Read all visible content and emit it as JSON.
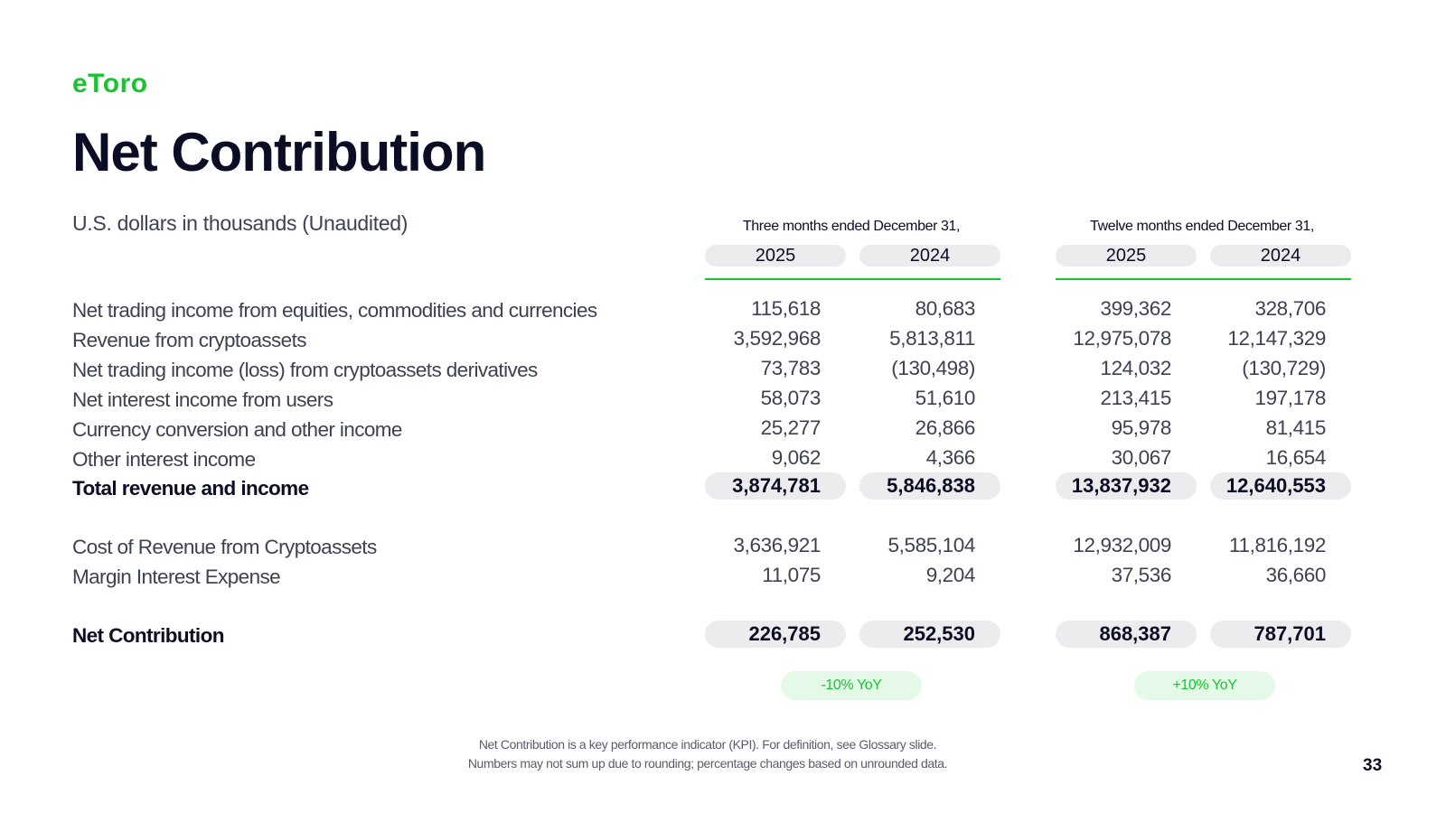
{
  "brand": {
    "name": "eToro",
    "logo_text": "eToro",
    "color": "#1ac431"
  },
  "title": "Net Contribution",
  "subtitle": "U.S. dollars in thousands (Unaudited)",
  "periods": [
    {
      "label": "Three months ended December 31,",
      "years": [
        "2025",
        "2024"
      ]
    },
    {
      "label": "Twelve months ended December 31,",
      "years": [
        "2025",
        "2024"
      ]
    }
  ],
  "rows": [
    {
      "label": "Net trading income from equities, commodities and currencies",
      "values": [
        "115,618",
        "80,683",
        "399,362",
        "328,706"
      ]
    },
    {
      "label": "Revenue from cryptoassets",
      "values": [
        "3,592,968",
        "5,813,811",
        "12,975,078",
        "12,147,329"
      ]
    },
    {
      "label": "Net trading income (loss) from cryptoassets derivatives",
      "values": [
        "73,783",
        "(130,498)",
        "124,032",
        "(130,729)"
      ]
    },
    {
      "label": "Net interest income from users",
      "values": [
        "58,073",
        "51,610",
        "213,415",
        "197,178"
      ]
    },
    {
      "label": "Currency conversion and other income",
      "values": [
        "25,277",
        "26,866",
        "95,978",
        "81,415"
      ]
    },
    {
      "label": "Other interest income",
      "values": [
        "9,062",
        "4,366",
        "30,067",
        "16,654"
      ]
    }
  ],
  "total_revenue": {
    "label": "Total revenue and income",
    "values": [
      "3,874,781",
      "5,846,838",
      "13,837,932",
      "12,640,553"
    ]
  },
  "cost_rows": [
    {
      "label": "Cost of Revenue from Cryptoassets",
      "values": [
        "3,636,921",
        "5,585,104",
        "12,932,009",
        "11,816,192"
      ]
    },
    {
      "label": "Margin Interest Expense",
      "values": [
        "11,075",
        "9,204",
        "37,536",
        "36,660"
      ]
    }
  ],
  "net_contribution": {
    "label": "Net Contribution",
    "values": [
      "226,785",
      "252,530",
      "868,387",
      "787,701"
    ]
  },
  "yoy": [
    "-10% YoY",
    "+10% YoY"
  ],
  "footnotes": [
    "Net Contribution is a key performance indicator (KPI).  For definition, see Glossary slide.",
    "Numbers may not sum up due to rounding; percentage changes based on unrounded data."
  ],
  "page_number": "33"
}
